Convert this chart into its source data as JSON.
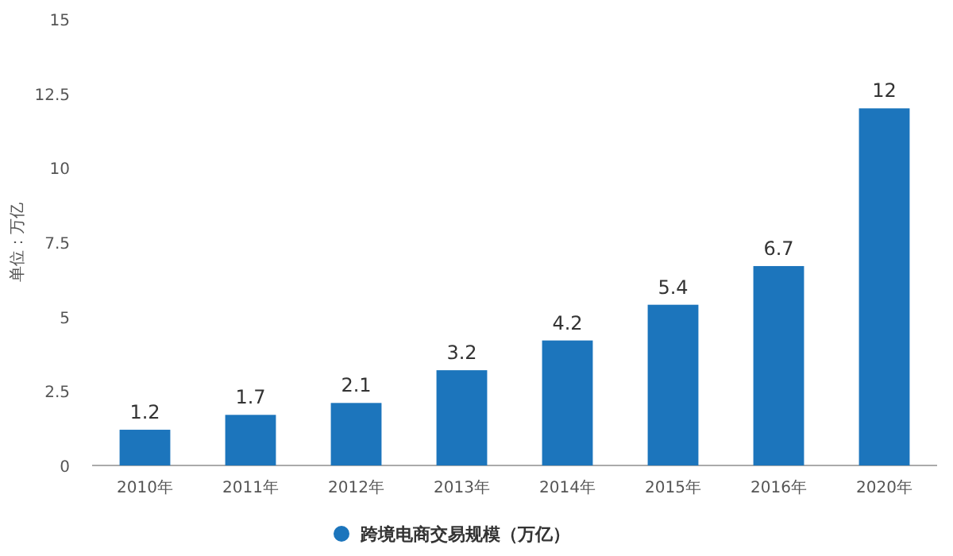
{
  "chart_data": {
    "type": "bar",
    "ylabel": "单位：万亿",
    "categories": [
      "2010年",
      "2011年",
      "2012年",
      "2013年",
      "2014年",
      "2015年",
      "2016年",
      "2020年"
    ],
    "series": [
      {
        "name": "跨境电商交易规模（万亿）",
        "color": "#1c75bc",
        "values": [
          1.2,
          1.7,
          2.1,
          3.2,
          4.2,
          5.4,
          6.7,
          12
        ]
      }
    ],
    "ylim": [
      0,
      15
    ],
    "yticks": [
      0,
      2.5,
      5,
      7.5,
      10,
      12.5,
      15
    ],
    "data_labels": true,
    "legend": "bottom",
    "marker": "circle"
  }
}
